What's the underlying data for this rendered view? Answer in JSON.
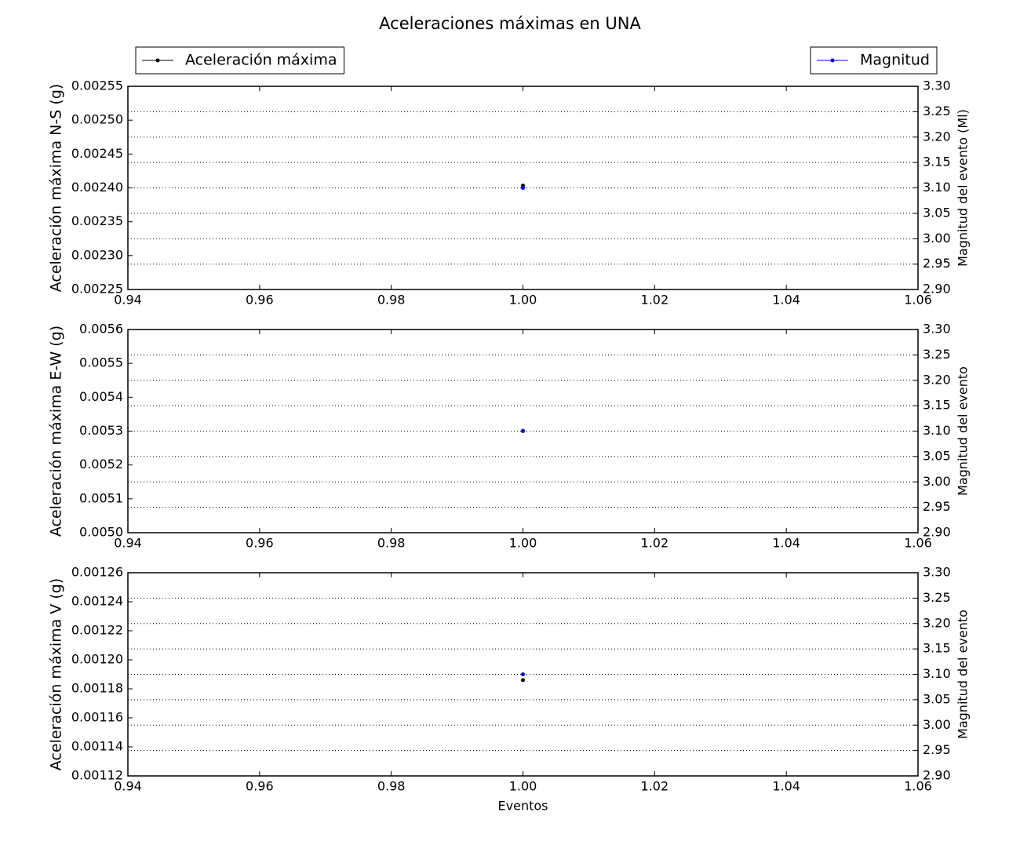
{
  "chart_data": [
    {
      "type": "line",
      "title": "Aceleraciones máximas en UNA",
      "x": [
        1
      ],
      "xlim": [
        0.94,
        1.06
      ],
      "xticks": [
        0.94,
        0.96,
        0.98,
        {
          "value": 1,
          "label": "1.00"
        },
        1.02,
        1.04,
        1.06
      ],
      "ylabel": "Aceleración máxima N-S (g)",
      "y2label": "Magnitud del evento (Ml)",
      "ylim": [
        0.00225,
        0.00255
      ],
      "yticks": [
        0.00225,
        {
          "value": 0.0023,
          "label": "0.00230"
        },
        0.00235,
        {
          "value": 0.0024,
          "label": "0.00240"
        },
        0.00245,
        {
          "value": 0.0025,
          "label": "0.00250"
        },
        0.00255
      ],
      "y2lim": [
        2.9,
        3.3
      ],
      "y2ticks": [
        {
          "value": 2.9,
          "label": "2.90"
        },
        2.95,
        {
          "value": 3,
          "label": "3.00"
        },
        3.05,
        {
          "value": 3.1,
          "label": "3.10"
        },
        3.15,
        {
          "value": 3.2,
          "label": "3.20"
        },
        3.25,
        {
          "value": 3.3,
          "label": "3.30"
        }
      ],
      "grid": "y2",
      "series": [
        {
          "name": "Aceleración máxima",
          "color": "#000000",
          "values": [
            0.0024035
          ],
          "legend": "upper left"
        },
        {
          "name": "Magnitud",
          "color": "#0000ff",
          "values": [
            3.1
          ],
          "axis": "y2",
          "legend": "upper right"
        }
      ]
    },
    {
      "type": "line",
      "x": [
        1
      ],
      "xlim": [
        0.94,
        1.06
      ],
      "xticks": [
        0.94,
        0.96,
        0.98,
        {
          "value": 1,
          "label": "1.00"
        },
        1.02,
        1.04,
        1.06
      ],
      "ylabel": "Aceleración máxima E-W (g)",
      "y2label": "Magnitud del evento",
      "ylim": [
        0.005,
        0.0056
      ],
      "yticks": [
        {
          "value": 0.005,
          "label": "0.0050"
        },
        0.0051,
        0.0052,
        0.0053,
        0.0054,
        0.0055,
        0.0056
      ],
      "y2lim": [
        2.9,
        3.3
      ],
      "y2ticks": [
        {
          "value": 2.9,
          "label": "2.90"
        },
        2.95,
        {
          "value": 3,
          "label": "3.00"
        },
        3.05,
        {
          "value": 3.1,
          "label": "3.10"
        },
        3.15,
        {
          "value": 3.2,
          "label": "3.20"
        },
        3.25,
        {
          "value": 3.3,
          "label": "3.30"
        }
      ],
      "grid": "y2",
      "series": [
        {
          "color": "#000000",
          "values": [
            0.005301
          ]
        },
        {
          "color": "#0000ff",
          "values": [
            3.1
          ],
          "axis": "y2"
        }
      ]
    },
    {
      "type": "line",
      "x": [
        1
      ],
      "xlim": [
        0.94,
        1.06
      ],
      "xticks": [
        0.94,
        0.96,
        0.98,
        {
          "value": 1,
          "label": "1.00"
        },
        1.02,
        1.04,
        1.06
      ],
      "xlabel": "Eventos",
      "ylabel": "Aceleración máxima V (g)",
      "y2label": "Magnitud del evento",
      "ylim": [
        0.00112,
        0.00126
      ],
      "yticks": [
        0.00112,
        0.00114,
        0.00116,
        0.00118,
        {
          "value": 0.0012,
          "label": "0.00120"
        },
        0.00122,
        0.00124,
        0.00126
      ],
      "y2lim": [
        2.9,
        3.3
      ],
      "y2ticks": [
        {
          "value": 2.9,
          "label": "2.90"
        },
        2.95,
        {
          "value": 3,
          "label": "3.00"
        },
        3.05,
        {
          "value": 3.1,
          "label": "3.10"
        },
        3.15,
        {
          "value": 3.2,
          "label": "3.20"
        },
        3.25,
        {
          "value": 3.3,
          "label": "3.30"
        }
      ],
      "grid": "y2",
      "series": [
        {
          "color": "#000000",
          "values": [
            0.001186
          ]
        },
        {
          "color": "#0000ff",
          "values": [
            3.1
          ],
          "axis": "y2"
        }
      ]
    }
  ]
}
